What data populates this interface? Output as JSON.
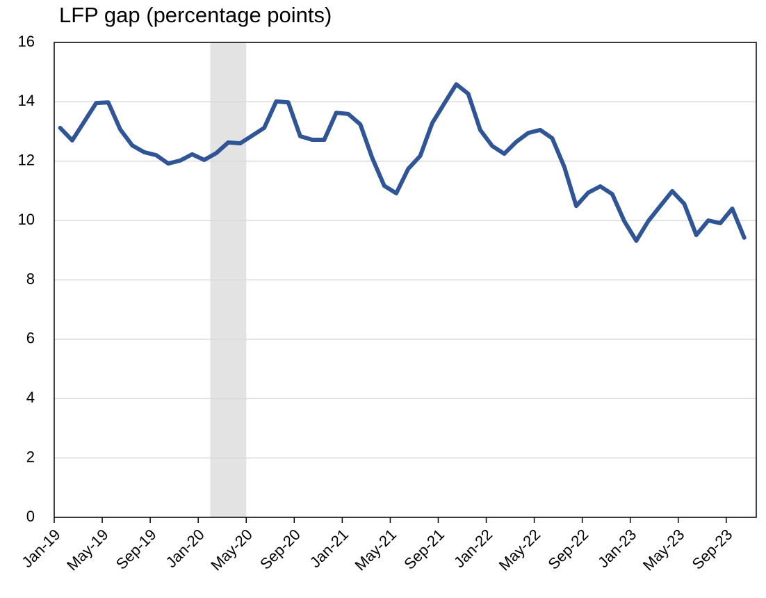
{
  "chart_data": {
    "type": "line",
    "title": "LFP gap (percentage points)",
    "categories": [
      "Jan-19",
      null,
      null,
      null,
      "May-19",
      null,
      null,
      null,
      "Sep-19",
      null,
      null,
      null,
      "Jan-20",
      null,
      null,
      null,
      "May-20",
      null,
      null,
      null,
      "Sep-20",
      null,
      null,
      null,
      "Jan-21",
      null,
      null,
      null,
      "May-21",
      null,
      null,
      null,
      "Sep-21",
      null,
      null,
      null,
      "Jan-22",
      null,
      null,
      null,
      "May-22",
      null,
      null,
      null,
      "Sep-22",
      null,
      null,
      null,
      "Jan-23",
      null,
      null,
      null,
      "May-23",
      null,
      null,
      null,
      "Sep-23",
      null
    ],
    "series": [
      {
        "color": "#2f5597",
        "values": [
          13.12,
          12.7,
          13.33,
          13.96,
          13.98,
          13.07,
          12.53,
          12.3,
          12.2,
          11.92,
          12.02,
          12.23,
          12.04,
          12.27,
          12.63,
          12.6,
          12.86,
          13.12,
          14.01,
          13.98,
          12.84,
          12.72,
          12.72,
          13.63,
          13.59,
          13.24,
          12.11,
          11.17,
          10.92,
          11.74,
          12.18,
          13.28,
          13.94,
          14.59,
          14.27,
          13.05,
          12.51,
          12.25,
          12.65,
          12.95,
          13.05,
          12.77,
          11.81,
          10.49,
          10.94,
          11.15,
          10.89,
          9.98,
          9.32,
          9.98,
          10.49,
          10.99,
          10.56,
          9.51,
          10.0,
          9.91,
          10.4,
          9.42
        ]
      }
    ],
    "shaded_categories": [
      13,
      15
    ],
    "shade_color": "#e3e3e3",
    "ylim": [
      0,
      16
    ],
    "yticks": [
      0,
      2,
      4,
      6,
      8,
      10,
      12,
      14,
      16
    ],
    "grid": true
  }
}
